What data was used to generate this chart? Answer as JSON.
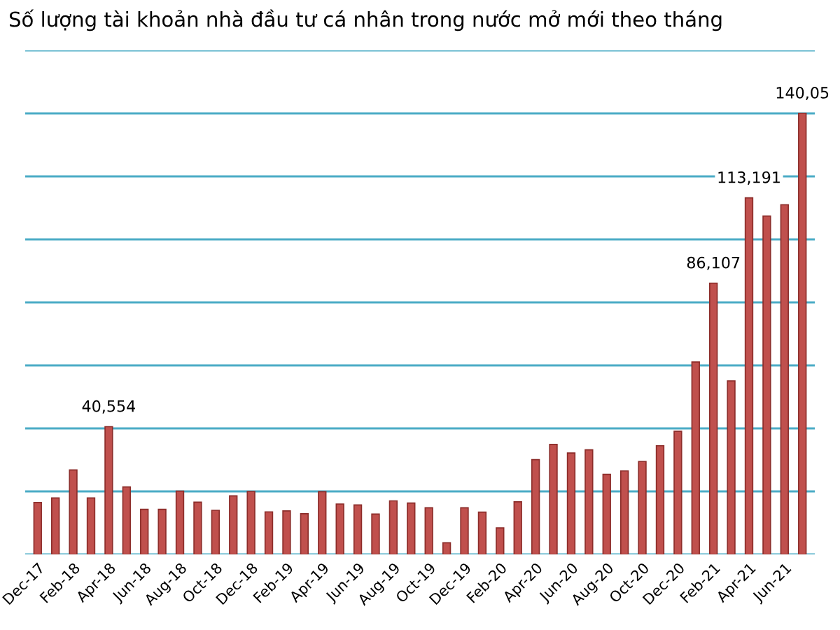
{
  "chart_data": {
    "type": "bar",
    "title": "Số lượng tài khoản nhà đầu tư cá nhân trong nước mở mới theo tháng",
    "categories": [
      "Dec-17",
      null,
      "Feb-18",
      null,
      "Apr-18",
      null,
      "Jun-18",
      null,
      "Aug-18",
      null,
      "Oct-18",
      null,
      "Dec-18",
      null,
      "Feb-19",
      null,
      "Apr-19",
      null,
      "Jun-19",
      null,
      "Aug-19",
      null,
      "Oct-19",
      null,
      "Dec-19",
      null,
      "Feb-20",
      null,
      "Apr-20",
      null,
      "Jun-20",
      null,
      "Aug-20",
      null,
      "Oct-20",
      null,
      "Dec-20",
      null,
      "Feb-21",
      null,
      "Apr-21",
      null,
      "Jun-21",
      null
    ],
    "values": [
      16500,
      17900,
      26800,
      17900,
      40554,
      21400,
      14300,
      14300,
      20100,
      16600,
      14000,
      18600,
      20000,
      13500,
      13800,
      12900,
      19900,
      16000,
      15700,
      12800,
      17000,
      16300,
      14800,
      3700,
      14800,
      13400,
      8400,
      16700,
      30100,
      34900,
      32200,
      33200,
      25400,
      26500,
      29500,
      34500,
      39100,
      61100,
      86107,
      55100,
      113191,
      107400,
      111000,
      140050
    ],
    "value_labels": [
      null,
      null,
      null,
      null,
      "40,554",
      null,
      null,
      null,
      null,
      null,
      null,
      null,
      null,
      null,
      null,
      null,
      null,
      null,
      null,
      null,
      null,
      null,
      null,
      null,
      null,
      null,
      null,
      null,
      null,
      null,
      null,
      null,
      null,
      null,
      null,
      null,
      null,
      null,
      "86,107",
      null,
      "113,191",
      null,
      null,
      null
    ],
    "annotations": [
      "140,05"
    ],
    "color": "#c0504d",
    "ylim": [
      0,
      160000
    ],
    "yticks": [
      {
        "value": 0,
        "label": null
      },
      {
        "value": 20000,
        "label": null
      },
      {
        "value": 40000,
        "label": null
      },
      {
        "value": 60000,
        "label": null
      },
      {
        "value": 80000,
        "label": null
      },
      {
        "value": 100000,
        "label": null
      },
      {
        "value": 120000,
        "label": null
      },
      {
        "value": 140000,
        "label": null
      },
      {
        "value": 160000,
        "label": null
      }
    ],
    "grid": "y",
    "tick_labels": "x"
  }
}
